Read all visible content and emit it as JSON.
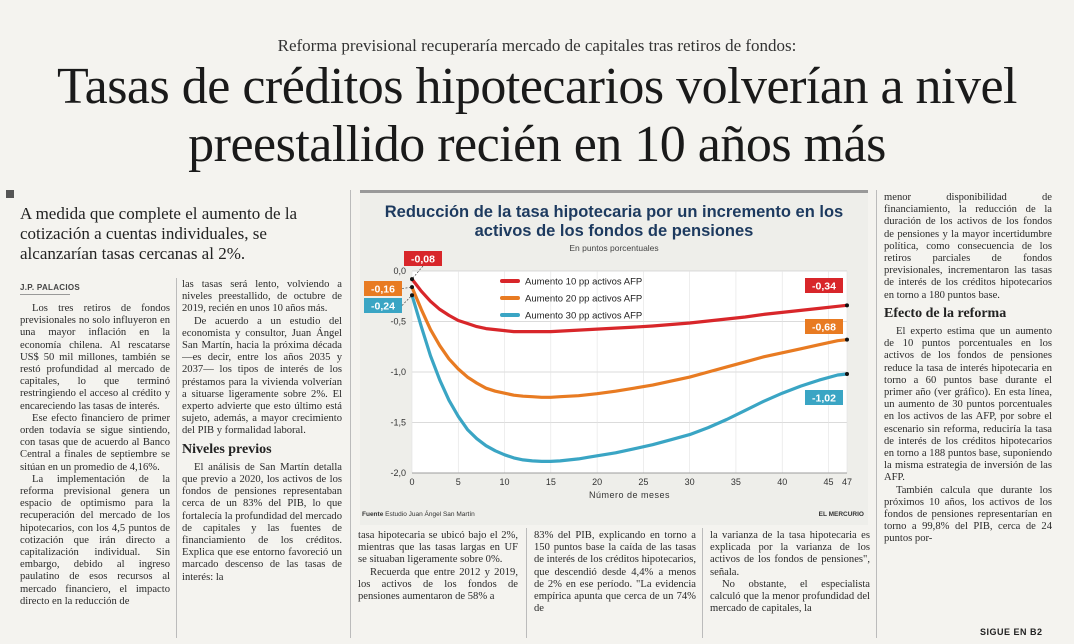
{
  "kicker": "Reforma previsional recuperaría mercado de capitales tras retiros de fondos:",
  "headline": "Tasas de créditos hipotecarios volverían a nivel preestallido recién en 10 años más",
  "lead": "A medida que complete el aumento de la cotización a cuentas individuales, se alcanzarían tasas cercanas al 2%.",
  "byline": "J.P. PALACIOS",
  "col1": [
    "Los tres retiros de fondos previsionales no solo influyeron en una mayor inflación en la economía chilena. Al rescatarse US$ 50 mil millones, también se restó profundidad al mercado de capitales, lo que terminó restringiendo el acceso al crédito y encareciendo las tasas de interés.",
    "Ese efecto financiero de primer orden todavía se sigue sintiendo, con tasas que de acuerdo al Banco Central a finales de septiembre se sitúan en un promedio de 4,16%.",
    "La implementación de la reforma previsional genera un espacio de optimismo para la recuperación del mercado de los hipotecarios, con los 4,5 puntos de cotización que irán directo a capitalización individual. Sin embargo, debido al ingreso paulatino de esos recursos al mercado financiero, el impacto directo en la reducción de"
  ],
  "col2a": [
    "las tasas será lento, volviendo a niveles preestallido, de octubre de 2019, recién en unos 10 años más.",
    "De acuerdo a un estudio del economista y consultor, Juan Ángel San Martín, hacia la próxima década —es decir, entre los años 2035 y 2037— los tipos de interés de los préstamos para la vivienda volverían a situarse ligeramente sobre 2%. El experto advierte que esto último está sujeto, además, a mayor crecimiento del PIB y formalidad laboral."
  ],
  "subhead1": "Niveles previos",
  "col2b": [
    "El análisis de San Martín detalla que previo a 2020, los activos de los fondos de pensiones representaban cerca de un 83% del PIB, lo que fortalecía la profundidad del mercado de capitales y las fuentes de financiamiento de los créditos. Explica que ese entorno favoreció un marcado descenso de las tasas de interés: la"
  ],
  "col3": [
    "tasa hipotecaria se ubicó bajo el 2%, mientras que las tasas largas en UF se situaban ligeramente sobre 0%.",
    "Recuerda que entre 2012 y 2019, los activos de los fondos de pensiones aumentaron de 58% a"
  ],
  "col4": [
    "83% del PIB, explicando en torno a 150 puntos base la caída de las tasas de interés de los créditos hipotecarios, que descendió desde 4,4% a menos de 2% en ese período. \"La evidencia empírica apunta que cerca de un 74% de"
  ],
  "col5": [
    "la varianza de la tasa hipotecaria es explicada por la varianza de los activos de los fondos de pensiones\", señala.",
    "No obstante, el especialista calculó que la menor profundidad del mercado de capitales, la"
  ],
  "col6a": [
    "menor disponibilidad de financiamiento, la reducción de la duración de los activos de los fondos de pensiones y la mayor incertidumbre política, como consecuencia de los retiros parciales de fondos previsionales, incrementaron las tasas de interés de los créditos hipotecarios en torno a 180 puntos base."
  ],
  "subhead2": "Efecto de la reforma",
  "col6b": [
    "El experto estima que un aumento de 10 puntos porcentuales en los activos de los fondos de pensiones reduce la tasa de interés hipotecaria en torno a 60 puntos base durante el primer año (ver gráfico). En esta línea, un aumento de 30 puntos porcentuales en los activos de las AFP, por sobre el escenario sin reforma, reduciría la tasa de interés de los créditos hipotecarios en torno a 188 puntos base, suponiendo la misma estrategia de inversión de las AFP.",
    "También calcula que durante los próximos 10 años, los activos de los fondos de pensiones representarían en torno a 99,8% del PIB, cerca de 24 puntos por-"
  ],
  "sigue": "SIGUE EN B2",
  "chart_data": {
    "type": "line",
    "title": "Reducción de la tasa hipotecaria por un incremento en los activos de los fondos de pensiones",
    "subtitle": "En puntos porcentuales",
    "xlabel": "Número de meses",
    "ylabel": "",
    "xlim": [
      0,
      47
    ],
    "ylim": [
      -2.0,
      0.0
    ],
    "x_ticks": [
      0,
      5,
      10,
      15,
      20,
      25,
      30,
      35,
      40,
      45,
      47
    ],
    "y_ticks": [
      0.0,
      -0.5,
      -1.0,
      -1.5,
      -2.0
    ],
    "y_tick_labels": [
      "0,0",
      "-0,5",
      "-1,0",
      "-1,5",
      "-2,0"
    ],
    "x": [
      0,
      1,
      2,
      3,
      4,
      5,
      6,
      7,
      8,
      9,
      10,
      11,
      12,
      13,
      14,
      15,
      16,
      17,
      18,
      19,
      20,
      22,
      24,
      26,
      28,
      30,
      32,
      34,
      36,
      38,
      40,
      42,
      44,
      46,
      47
    ],
    "series": [
      {
        "name": "Aumento 10 pp activos AFP",
        "color": "#d8262a",
        "start_label": "-0,08",
        "end_label": "-0,34",
        "values": [
          -0.08,
          -0.2,
          -0.3,
          -0.38,
          -0.44,
          -0.49,
          -0.52,
          -0.55,
          -0.57,
          -0.58,
          -0.59,
          -0.6,
          -0.6,
          -0.6,
          -0.6,
          -0.6,
          -0.595,
          -0.59,
          -0.585,
          -0.58,
          -0.575,
          -0.565,
          -0.555,
          -0.545,
          -0.53,
          -0.515,
          -0.495,
          -0.475,
          -0.455,
          -0.43,
          -0.41,
          -0.39,
          -0.37,
          -0.35,
          -0.34
        ]
      },
      {
        "name": "Aumento 20 pp activos AFP",
        "color": "#e87b22",
        "start_label": "-0,16",
        "end_label": "-0,68",
        "values": [
          -0.16,
          -0.38,
          -0.58,
          -0.74,
          -0.87,
          -0.97,
          -1.05,
          -1.11,
          -1.16,
          -1.19,
          -1.21,
          -1.23,
          -1.24,
          -1.245,
          -1.25,
          -1.25,
          -1.245,
          -1.24,
          -1.235,
          -1.225,
          -1.215,
          -1.19,
          -1.16,
          -1.13,
          -1.09,
          -1.05,
          -1.0,
          -0.95,
          -0.9,
          -0.85,
          -0.81,
          -0.77,
          -0.73,
          -0.69,
          -0.68
        ]
      },
      {
        "name": "Aumento 30 pp activos AFP",
        "color": "#3aa5c4",
        "start_label": "-0,24",
        "end_label": "-1,02",
        "values": [
          -0.24,
          -0.55,
          -0.84,
          -1.08,
          -1.28,
          -1.44,
          -1.57,
          -1.66,
          -1.73,
          -1.78,
          -1.82,
          -1.85,
          -1.87,
          -1.88,
          -1.885,
          -1.885,
          -1.88,
          -1.87,
          -1.86,
          -1.845,
          -1.83,
          -1.8,
          -1.76,
          -1.72,
          -1.67,
          -1.62,
          -1.55,
          -1.47,
          -1.38,
          -1.29,
          -1.21,
          -1.14,
          -1.08,
          -1.03,
          -1.02
        ]
      }
    ],
    "source_label": "Fuente",
    "source": "Estudio Juan Ángel San Martín",
    "credit": "EL MERCURIO"
  }
}
